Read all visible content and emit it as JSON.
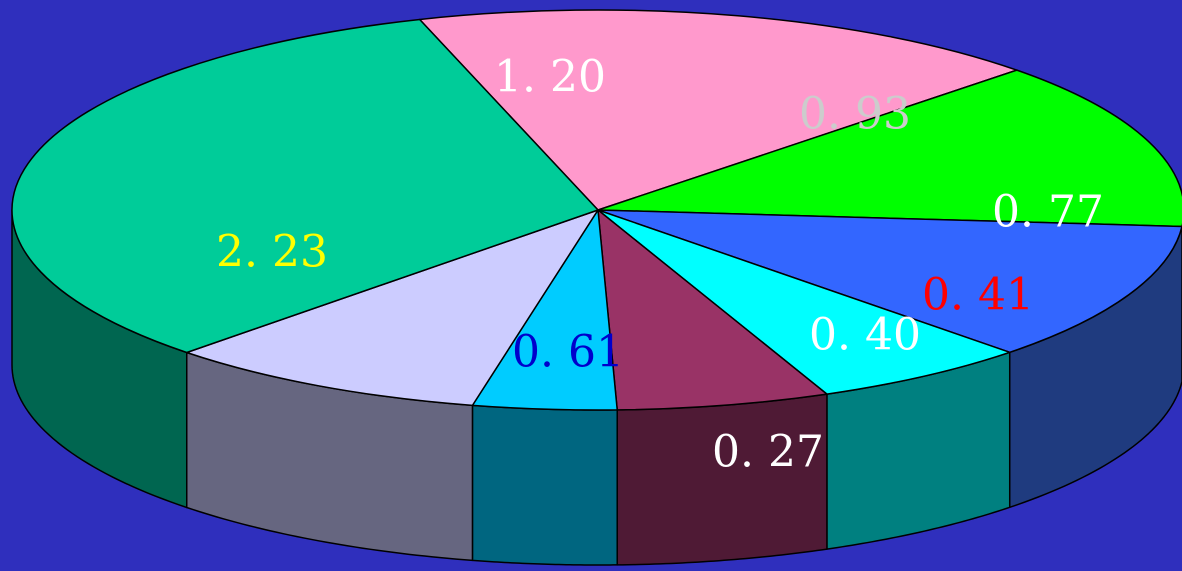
{
  "chart_data": {
    "type": "pie",
    "style": "3d",
    "title": "",
    "background_color": "#2f2fbd",
    "slices": [
      {
        "value": 1.2,
        "label": "1. 20",
        "top_color": "#ff99cc",
        "side_color": "#b06a8d",
        "label_color": "#ffffff"
      },
      {
        "value": 0.93,
        "label": "0. 93",
        "top_color": "#00ff00",
        "side_color": "#00a000",
        "label_color": "#cccccc"
      },
      {
        "value": 0.77,
        "label": "0. 77",
        "top_color": "#3366ff",
        "side_color": "#1f3b7f",
        "label_color": "#ffffff"
      },
      {
        "value": 0.41,
        "label": "0. 41",
        "top_color": "#00ffff",
        "side_color": "#008080",
        "label_color": "#ff0000"
      },
      {
        "value": 0.4,
        "label": "0. 40",
        "top_color": "#993366",
        "side_color": "#4f1a35",
        "label_color": "#ffffff"
      },
      {
        "value": 0.27,
        "label": "0. 27",
        "top_color": "#00ccff",
        "side_color": "#006680",
        "label_color": "#ffffff"
      },
      {
        "value": 0.61,
        "label": "0. 61",
        "top_color": "#ccccff",
        "side_color": "#666680",
        "label_color": "#0000cc"
      },
      {
        "value": 2.23,
        "label": "2. 23",
        "top_color": "#00cc99",
        "side_color": "#006650",
        "label_color": "#ffff00"
      }
    ]
  }
}
